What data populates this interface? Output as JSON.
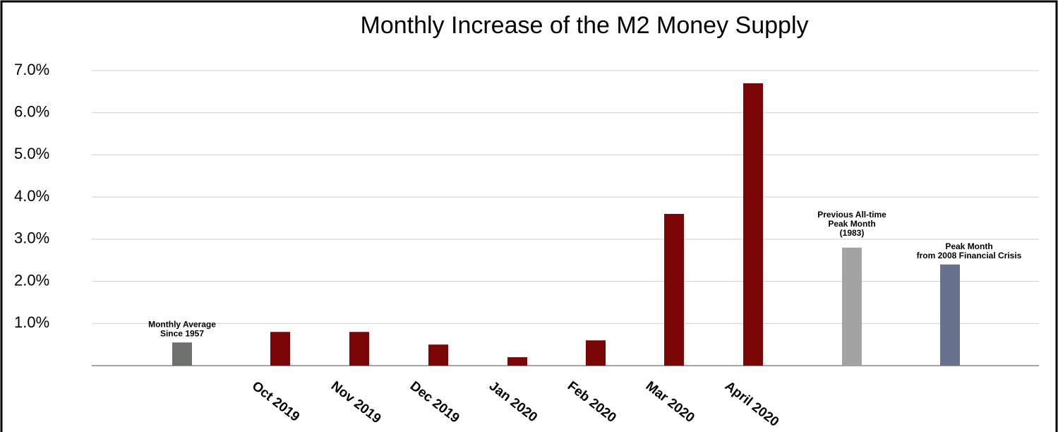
{
  "chart_data": {
    "type": "bar",
    "title": "Monthly Increase of the M2 Money Supply",
    "categories": [
      null,
      "Oct 2019",
      "Nov 2019",
      "Dec 2019",
      "Jan 2020",
      "Feb 2020",
      "Mar 2020",
      "April 2020",
      null,
      null
    ],
    "values": [
      0.55,
      0.8,
      0.8,
      0.5,
      0.2,
      0.6,
      3.6,
      6.7,
      2.8,
      2.4
    ],
    "colors": [
      "#6f716f",
      "#7b0606",
      "#7b0606",
      "#7b0606",
      "#7b0606",
      "#7b0606",
      "#7b0606",
      "#7b0606",
      "#a3a3a3",
      "#68718b"
    ],
    "annotations": [
      [
        "Monthly Average",
        "Since 1957"
      ],
      null,
      null,
      null,
      null,
      null,
      null,
      null,
      [
        "Previous All-time",
        "Peak Month",
        "(1983)"
      ],
      [
        "Peak Month",
        "from 2008 Financial Crisis"
      ]
    ],
    "ylim": [
      0,
      7
    ],
    "yticks": [
      {
        "value": 1,
        "label": "1.0%"
      },
      {
        "value": 2,
        "label": "2.0%"
      },
      {
        "value": 3,
        "label": "3.0%"
      },
      {
        "value": 4,
        "label": "4.0%"
      },
      {
        "value": 5,
        "label": "5.0%"
      },
      {
        "value": 6,
        "label": "6.0%"
      },
      {
        "value": 7,
        "label": "7.0%"
      }
    ],
    "grid": true
  }
}
